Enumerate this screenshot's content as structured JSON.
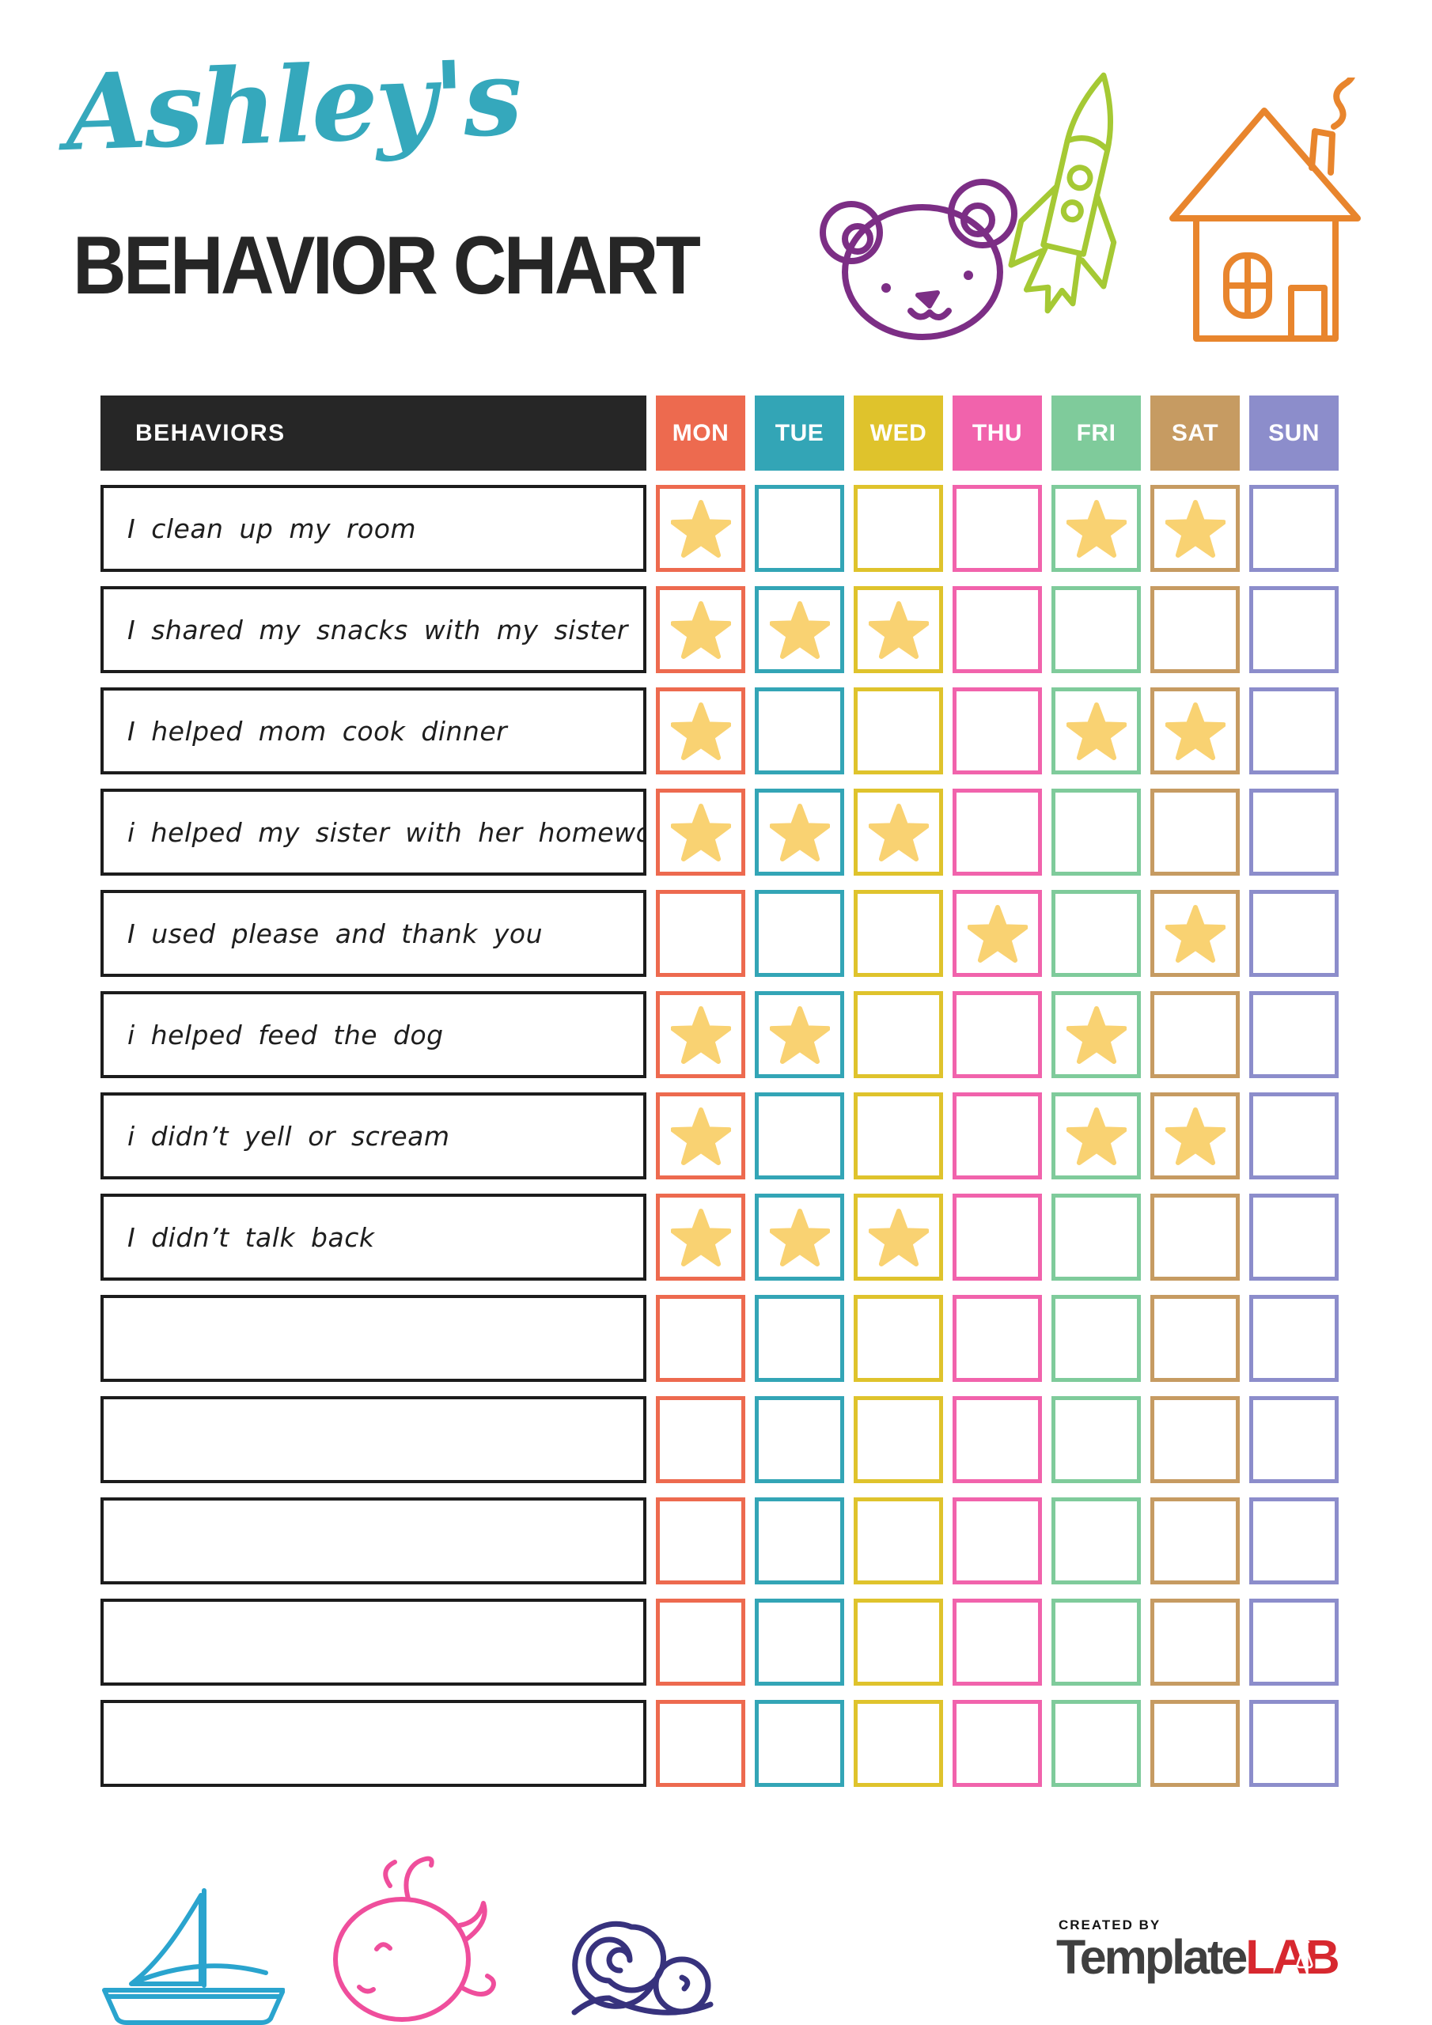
{
  "title": {
    "name": "Ashley's",
    "subtitle": "BEHAVIOR CHART"
  },
  "header_doodles": {
    "bear_color": "#7C2E85",
    "rocket_color": "#A5C934",
    "house_color": "#E8852D"
  },
  "table": {
    "behaviors_header": "BEHAVIORS",
    "header_bg": "#262626",
    "star_color": "#F9D272",
    "days": [
      {
        "label": "MON",
        "color": "#ED6A4F"
      },
      {
        "label": "TUE",
        "color": "#33A5B6"
      },
      {
        "label": "WED",
        "color": "#DFC32C"
      },
      {
        "label": "THU",
        "color": "#F163AC"
      },
      {
        "label": "FRI",
        "color": "#7FCB9B"
      },
      {
        "label": "SAT",
        "color": "#C69B62"
      },
      {
        "label": "SUN",
        "color": "#8C8DCB"
      }
    ],
    "rows": [
      {
        "label": "I clean up my room",
        "stars": [
          "MON",
          "FRI",
          "SAT"
        ]
      },
      {
        "label": "I shared my snacks with my sister",
        "stars": [
          "MON",
          "TUE",
          "WED"
        ]
      },
      {
        "label": "I helped mom cook dinner",
        "stars": [
          "MON",
          "FRI",
          "SAT"
        ]
      },
      {
        "label": "i helped my sister with her homework",
        "stars": [
          "MON",
          "TUE",
          "WED"
        ]
      },
      {
        "label": "I used please and thank you",
        "stars": [
          "THU",
          "SAT"
        ]
      },
      {
        "label": "i helped feed the dog",
        "stars": [
          "MON",
          "TUE",
          "FRI"
        ]
      },
      {
        "label": "i didn’t yell or scream",
        "stars": [
          "MON",
          "FRI",
          "SAT"
        ]
      },
      {
        "label": "I didn’t talk back",
        "stars": [
          "MON",
          "TUE",
          "WED"
        ]
      },
      {
        "label": "",
        "stars": []
      },
      {
        "label": "",
        "stars": []
      },
      {
        "label": "",
        "stars": []
      },
      {
        "label": "",
        "stars": []
      },
      {
        "label": "",
        "stars": []
      }
    ]
  },
  "footer_doodles": {
    "boat_color": "#2AA4CE",
    "whale_color": "#EF4E9C",
    "snail_color": "#37327D"
  },
  "footer": {
    "created_by": "CREATED BY",
    "brand_template": "Template",
    "brand_lab": "LAB",
    "brand_template_color": "#3F3F3F",
    "brand_lab_color": "#D7282F"
  }
}
